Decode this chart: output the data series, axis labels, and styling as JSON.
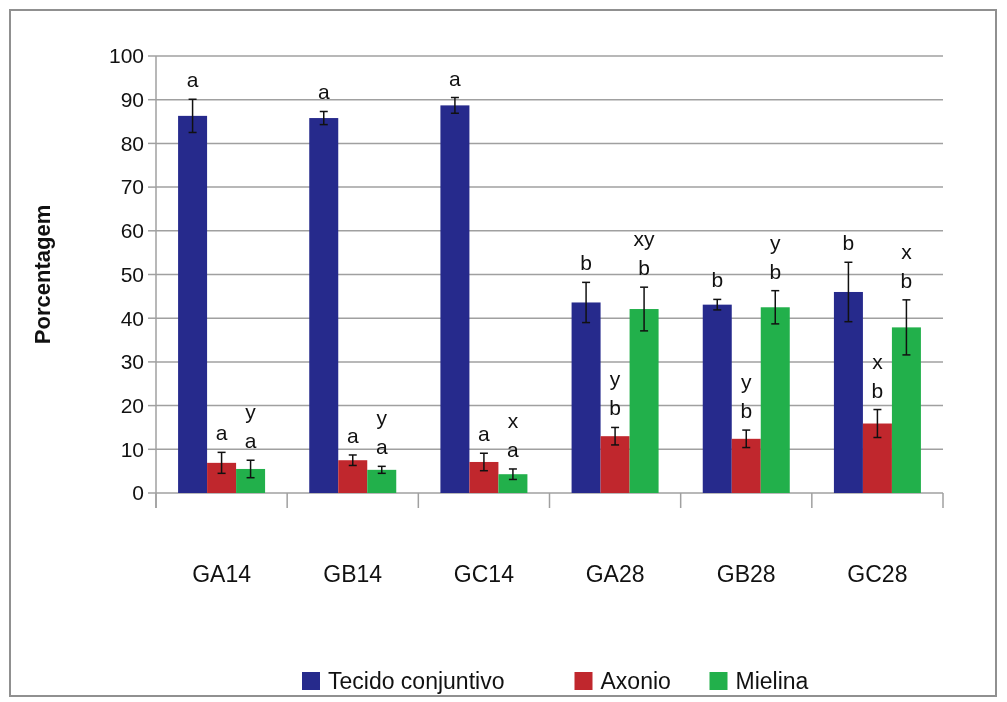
{
  "chart_data": {
    "type": "bar",
    "ylabel": "Porcentagem",
    "categories": [
      "GA14",
      "GB14",
      "GC14",
      "GA28",
      "GB28",
      "GC28"
    ],
    "ylim": [
      0,
      100
    ],
    "yticks": [
      0,
      10,
      20,
      30,
      40,
      50,
      60,
      70,
      80,
      90,
      100
    ],
    "grid": "y",
    "legend": "bottom",
    "series": [
      {
        "name": "Tecido conjuntivo",
        "color": "#262a8c",
        "values": [
          86.3,
          85.8,
          88.7,
          43.6,
          43.1,
          46
        ],
        "errors": [
          3.8,
          1.5,
          1.8,
          4.6,
          1.2,
          6.8
        ],
        "value_labels": [
          "a",
          "a",
          "a",
          "b",
          "b",
          "b"
        ]
      },
      {
        "name": "Axonio",
        "color": "#c0272d",
        "values": [
          6.9,
          7.5,
          7.1,
          13,
          12.4,
          15.9
        ],
        "errors": [
          2.4,
          1.2,
          2,
          2,
          2,
          3.2
        ],
        "value_labels": [
          "a",
          "a",
          "a",
          "y\nb",
          "y\nb",
          "x\nb"
        ]
      },
      {
        "name": "Mielina",
        "color": "#22b04b",
        "values": [
          5.5,
          5.3,
          4.3,
          42.1,
          42.5,
          37.9
        ],
        "errors": [
          2,
          0.8,
          1.2,
          5,
          3.8,
          6.3
        ],
        "value_labels": [
          "y\na",
          "y\na",
          "x\na",
          "xy\nb",
          "y\nb",
          "x\nb"
        ]
      }
    ]
  }
}
